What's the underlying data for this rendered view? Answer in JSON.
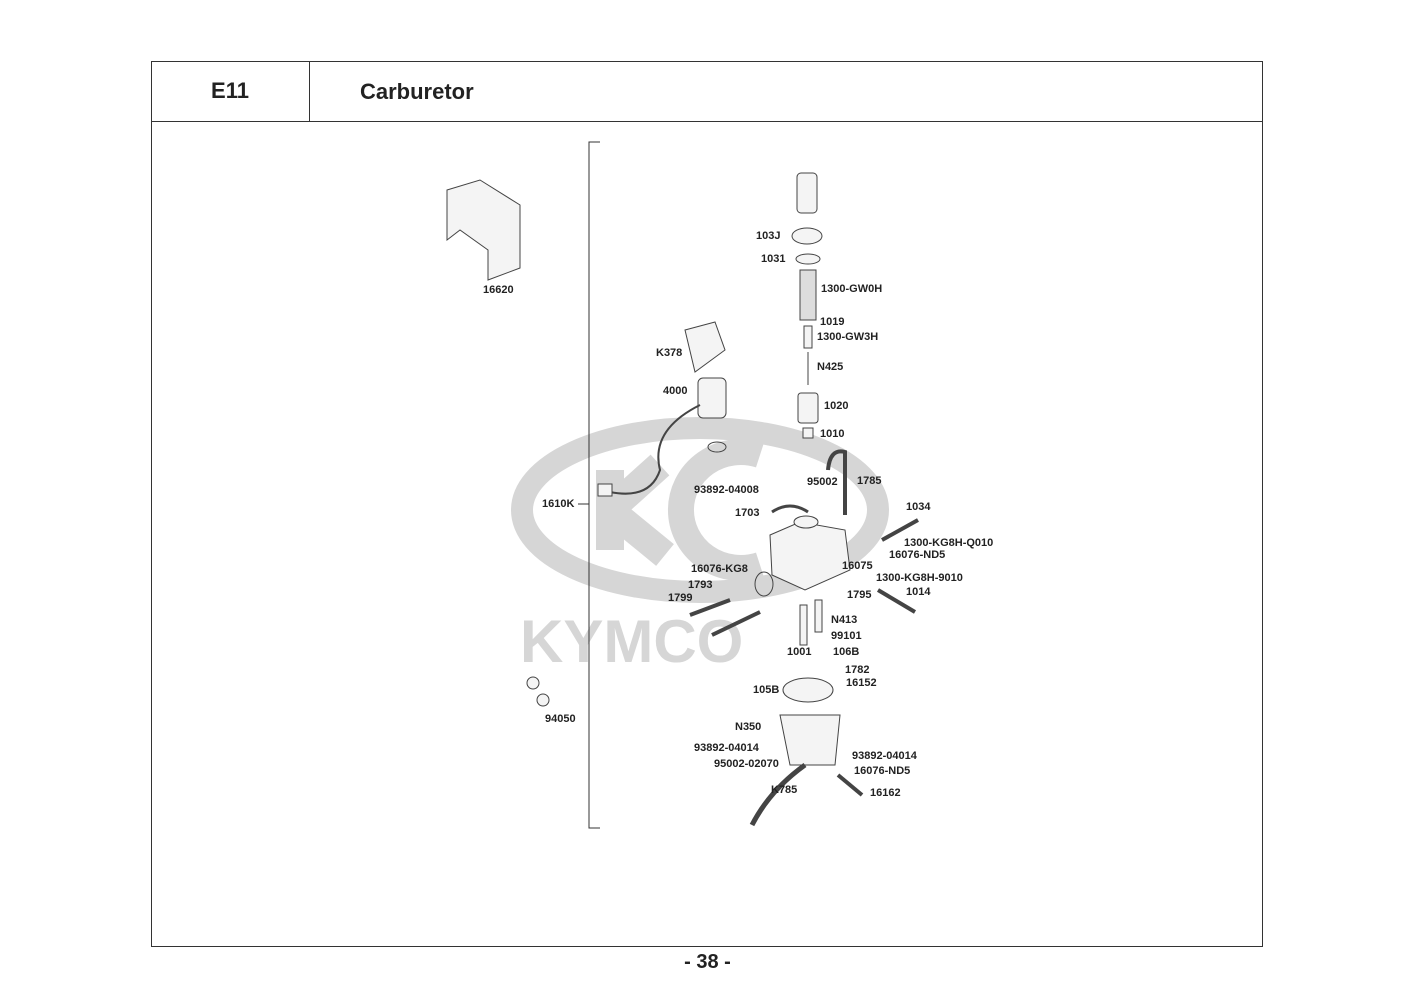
{
  "header": {
    "section_code": "E11",
    "title": "Carburetor"
  },
  "watermark": {
    "brand": "KYMCO"
  },
  "parts": [
    "16620",
    "103J",
    "1031",
    "1300-GW0H",
    "1019",
    "1300-GW3H",
    "N425",
    "1020",
    "1010",
    "1785",
    "95002",
    "93892-04008",
    "1703",
    "1034",
    "1300-KG8H-Q010",
    "16076-ND5",
    "16075",
    "16076-KG8",
    "1300-KG8H-9010",
    "1793",
    "1795",
    "1014",
    "1799",
    "N413",
    "99101",
    "1001",
    "106B",
    "1782",
    "16152",
    "105B",
    "N350",
    "93892-04014",
    "93892-04014",
    "95002-02070",
    "16076-ND5",
    "K785",
    "16162",
    "K378",
    "4000",
    "1610K",
    "94050"
  ],
  "footer": {
    "page_number": "- 38 -"
  }
}
